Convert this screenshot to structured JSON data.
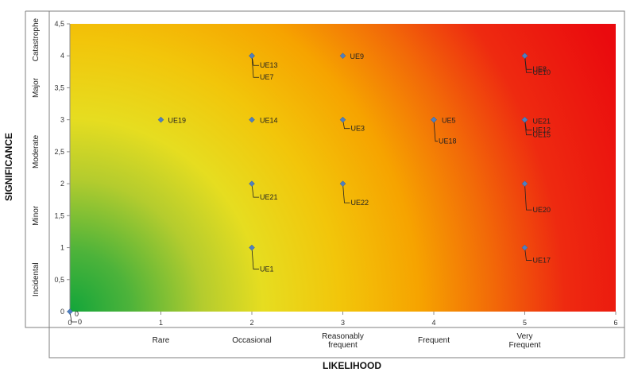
{
  "chart_data": {
    "type": "scatter",
    "title": "",
    "xlabel": "LIKELIHOOD",
    "ylabel": "SIGNIFICANCE",
    "xlim": [
      0,
      6
    ],
    "ylim": [
      0,
      4.5
    ],
    "x_ticks": [
      "0",
      "1",
      "2",
      "3",
      "4",
      "5",
      "6"
    ],
    "y_ticks": [
      "0",
      "0,5",
      "1",
      "1,5",
      "2",
      "2,5",
      "3",
      "3,5",
      "4",
      "4,5"
    ],
    "x_categories": [
      "Rare",
      "Occasional",
      "Reasonably frequent",
      "Frequent",
      "Very Frequent"
    ],
    "y_categories": [
      "Incidental",
      "Minor",
      "Moderate",
      "Major",
      "Catastrophe"
    ],
    "background": "green-yellow-red gradient (risk heat map)",
    "colors": {
      "low": "#1fa83c",
      "mid": "#e8dc1c",
      "orange": "#f5a800",
      "high": "#ee0f0f",
      "marker": "#4f7fbf"
    },
    "points": [
      {
        "x": 0,
        "y": 0,
        "label": "0"
      },
      {
        "x": 0,
        "y": 0,
        "label": "0"
      },
      {
        "x": 1,
        "y": 3,
        "label": "UE19"
      },
      {
        "x": 2,
        "y": 4,
        "label": "UE13"
      },
      {
        "x": 2,
        "y": 4,
        "label": "UE7"
      },
      {
        "x": 2,
        "y": 3,
        "label": "UE14"
      },
      {
        "x": 2,
        "y": 2,
        "label": "UE21"
      },
      {
        "x": 2,
        "y": 1,
        "label": "UE1"
      },
      {
        "x": 3,
        "y": 4,
        "label": "UE9"
      },
      {
        "x": 3,
        "y": 3,
        "label": "UE3"
      },
      {
        "x": 3,
        "y": 2,
        "label": "UE22"
      },
      {
        "x": 4,
        "y": 3,
        "label": "UE5"
      },
      {
        "x": 4,
        "y": 3,
        "label": "UE18"
      },
      {
        "x": 5,
        "y": 4,
        "label": "UE8"
      },
      {
        "x": 5,
        "y": 4,
        "label": "UE10"
      },
      {
        "x": 5,
        "y": 3,
        "label": "UE21"
      },
      {
        "x": 5,
        "y": 3,
        "label": "UE12"
      },
      {
        "x": 5,
        "y": 3,
        "label": "UE15"
      },
      {
        "x": 5,
        "y": 2,
        "label": "UE20"
      },
      {
        "x": 5,
        "y": 1,
        "label": "UE17"
      }
    ]
  }
}
